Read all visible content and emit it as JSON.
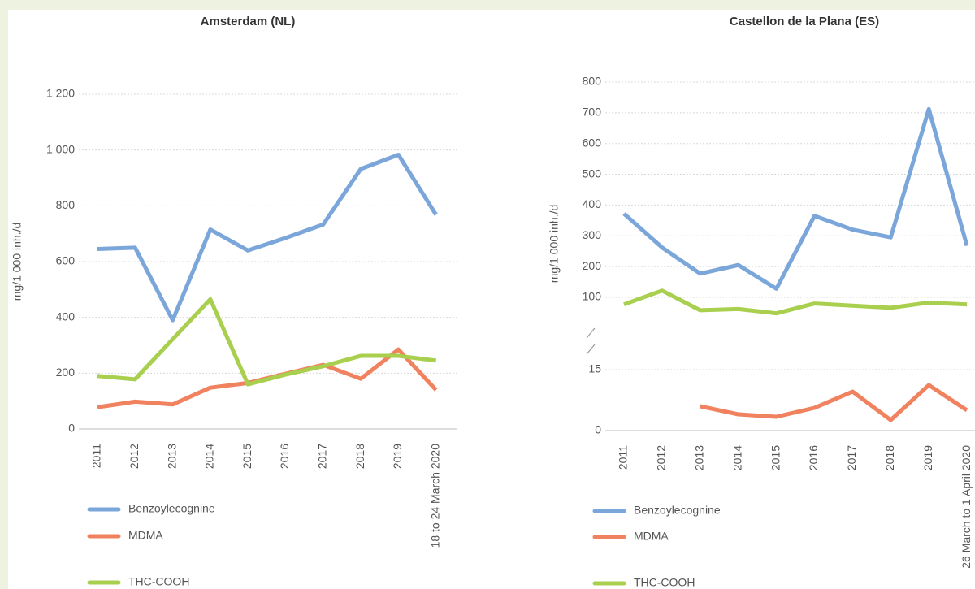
{
  "chart_data": [
    {
      "type": "line",
      "title": "Amsterdam (NL)",
      "y_label": "mg/1 000 inh./d",
      "categories": [
        "2011",
        "2012",
        "2013",
        "2014",
        "2015",
        "2016",
        "2017",
        "2018",
        "2019",
        "18 to 24 March 2020"
      ],
      "series": [
        {
          "name": "Benzoylecognine",
          "color": "#7ba6da",
          "values": [
            645,
            650,
            390,
            715,
            640,
            685,
            733,
            932,
            983,
            768
          ]
        },
        {
          "name": "MDMA",
          "color": "#f0825f",
          "values": [
            78,
            98,
            88,
            148,
            165,
            198,
            230,
            180,
            285,
            140
          ]
        },
        {
          "name": "THC-COOH",
          "color": "#a9cf4e",
          "values": [
            190,
            178,
            322,
            465,
            160,
            195,
            225,
            262,
            262,
            245
          ]
        }
      ],
      "ylim": [
        0,
        1200
      ],
      "yticks": [
        0,
        200,
        400,
        600,
        800,
        {
          "value": 1000,
          "label": "1 000"
        },
        {
          "value": 1200,
          "label": "1 200"
        }
      ],
      "grid": true
    },
    {
      "type": "line",
      "title": "Castellon de la Plana (ES)",
      "y_label": "mg/1 000 inh./d",
      "categories": [
        "2011",
        "2012",
        "2013",
        "2014",
        "2015",
        "2016",
        "2017",
        "2018",
        "2019",
        "26 March to 1 April 2020"
      ],
      "series": [
        {
          "name": "Benzoylecognine",
          "color": "#7ba6da",
          "values": [
            372,
            262,
            177,
            205,
            128,
            365,
            320,
            295,
            712,
            268
          ]
        },
        {
          "name": "MDMA",
          "color": "#f0825f",
          "axis": "y2",
          "values": [
            null,
            null,
            6,
            4,
            3.4,
            5.6,
            9.6,
            2.6,
            11.2,
            5
          ]
        },
        {
          "name": "THC-COOH",
          "color": "#a9cf4e",
          "values": [
            77,
            122,
            58,
            62,
            48,
            80,
            73,
            66,
            83,
            77
          ]
        }
      ],
      "ylim": [
        25,
        820
      ],
      "yticks": [
        100,
        200,
        300,
        400,
        500,
        600,
        700,
        800
      ],
      "y2lim": [
        0,
        18
      ],
      "y2ticks": [
        0,
        15
      ],
      "axis_break": true,
      "grid": true
    }
  ]
}
